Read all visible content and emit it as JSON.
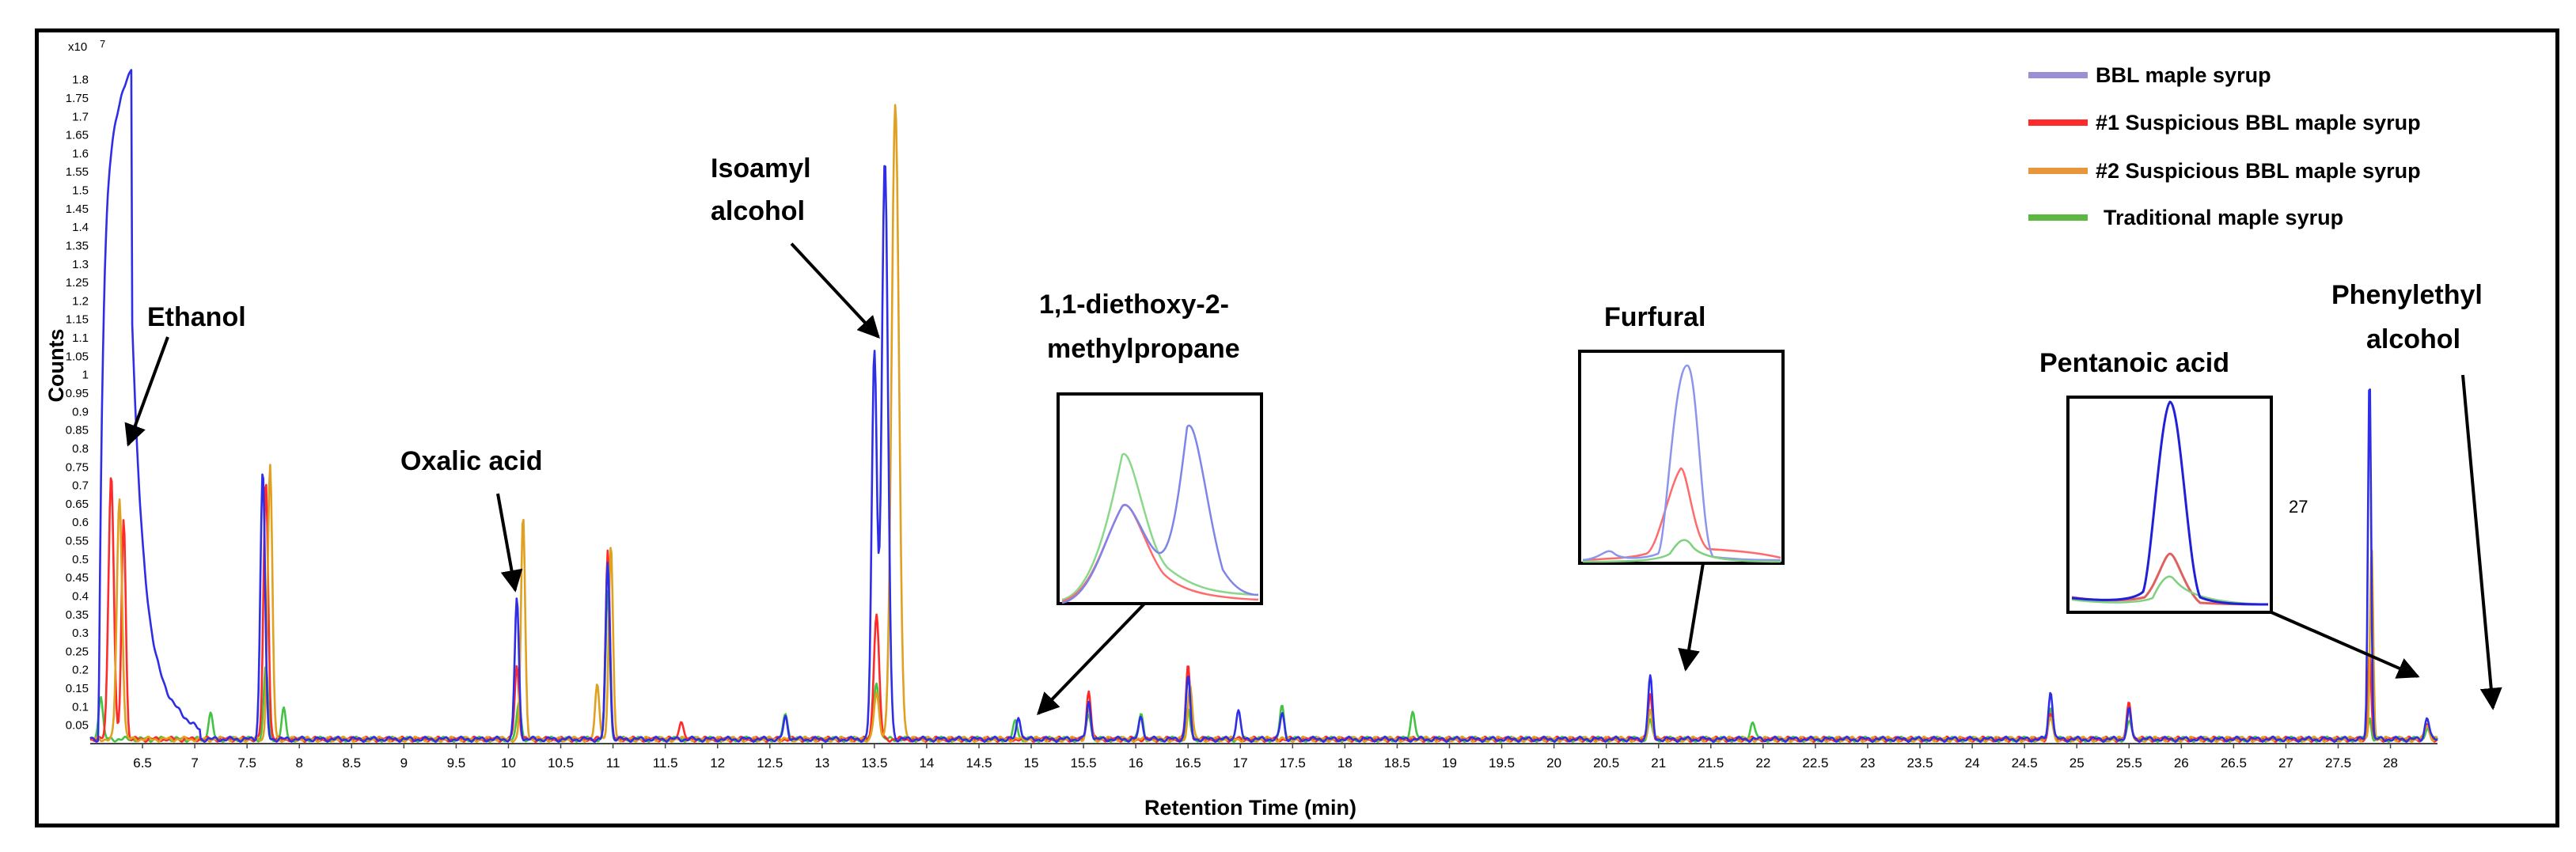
{
  "chart_data": {
    "type": "line",
    "xlabel": "Retention Time (min)",
    "ylabel": "Counts",
    "y_multiplier": "x10",
    "y_multiplier_exp": "7",
    "xlim": [
      6.0,
      28.45
    ],
    "ylim": [
      0,
      1.9
    ],
    "x_ticks": [
      "6.5",
      "7",
      "7.5",
      "8",
      "8.5",
      "9",
      "9.5",
      "10",
      "10.5",
      "11",
      "11.5",
      "12",
      "12.5",
      "13",
      "13.5",
      "14",
      "14.5",
      "15",
      "15.5",
      "16",
      "16.5",
      "17",
      "17.5",
      "18",
      "18.5",
      "19",
      "19.5",
      "20",
      "20.5",
      "21",
      "21.5",
      "22",
      "22.5",
      "23",
      "23.5",
      "24",
      "24.5",
      "25",
      "25.5",
      "26",
      "26.5",
      "27",
      "27.5",
      "28"
    ],
    "y_ticks": [
      "0.05",
      "0.1",
      "0.15",
      "0.2",
      "0.25",
      "0.3",
      "0.35",
      "0.4",
      "0.45",
      "0.5",
      "0.55",
      "0.6",
      "0.65",
      "0.7",
      "0.75",
      "0.8",
      "0.85",
      "0.9",
      "0.95",
      "1",
      "1.05",
      "1.1",
      "1.15",
      "1.2",
      "1.25",
      "1.3",
      "1.35",
      "1.4",
      "1.45",
      "1.5",
      "1.55",
      "1.6",
      "1.65",
      "1.7",
      "1.75",
      "1.8"
    ],
    "baseline": 0.012,
    "series": [
      {
        "name": "BBL maple syrup",
        "legend_color": "#9b8fd6",
        "line_color": "#2e2ee6",
        "peaks": [
          [
            7.65,
            0.73,
            0.022
          ],
          [
            10.08,
            0.38,
            0.02
          ],
          [
            10.95,
            0.48,
            0.02
          ],
          [
            12.65,
            0.06,
            0.02
          ],
          [
            13.5,
            1.05,
            0.025
          ],
          [
            13.6,
            1.57,
            0.03
          ],
          [
            14.88,
            0.06,
            0.02
          ],
          [
            15.55,
            0.1,
            0.02
          ],
          [
            16.05,
            0.06,
            0.02
          ],
          [
            16.5,
            0.17,
            0.02
          ],
          [
            16.98,
            0.08,
            0.02
          ],
          [
            17.4,
            0.07,
            0.02
          ],
          [
            20.92,
            0.17,
            0.02
          ],
          [
            24.75,
            0.13,
            0.02
          ],
          [
            25.5,
            0.08,
            0.02
          ],
          [
            27.8,
            1.0,
            0.015
          ],
          [
            28.35,
            0.06,
            0.02
          ]
        ],
        "tail": {
          "start": 6.08,
          "end": 7.05,
          "max": 1.84
        }
      },
      {
        "name": "#1 Suspicious BBL maple syrup",
        "legend_color": "#ff2a2a",
        "line_color": "#ff2a2a",
        "peaks": [
          [
            6.2,
            0.72,
            0.025
          ],
          [
            6.32,
            0.6,
            0.02
          ],
          [
            7.68,
            0.7,
            0.022
          ],
          [
            10.08,
            0.2,
            0.02
          ],
          [
            10.95,
            0.52,
            0.02
          ],
          [
            11.65,
            0.05,
            0.02
          ],
          [
            13.52,
            0.34,
            0.025
          ],
          [
            15.55,
            0.13,
            0.02
          ],
          [
            16.5,
            0.2,
            0.02
          ],
          [
            20.92,
            0.12,
            0.02
          ],
          [
            24.75,
            0.07,
            0.02
          ],
          [
            25.5,
            0.1,
            0.02
          ],
          [
            27.8,
            0.24,
            0.015
          ],
          [
            28.35,
            0.04,
            0.02
          ]
        ]
      },
      {
        "name": "#2 Suspicious BBL maple syrup",
        "legend_color": "#e8963c",
        "line_color": "#e0a020",
        "peaks": [
          [
            6.28,
            0.65,
            0.025
          ],
          [
            7.72,
            0.74,
            0.022
          ],
          [
            10.14,
            0.6,
            0.02
          ],
          [
            10.85,
            0.15,
            0.02
          ],
          [
            10.98,
            0.52,
            0.02
          ],
          [
            13.52,
            0.12,
            0.025
          ],
          [
            13.7,
            1.72,
            0.035
          ],
          [
            15.55,
            0.08,
            0.02
          ],
          [
            16.52,
            0.15,
            0.02
          ],
          [
            20.92,
            0.08,
            0.02
          ],
          [
            24.75,
            0.06,
            0.02
          ],
          [
            25.5,
            0.08,
            0.02
          ],
          [
            27.82,
            0.52,
            0.015
          ],
          [
            28.35,
            0.04,
            0.02
          ]
        ]
      },
      {
        "name": "Traditional maple syrup",
        "legend_color": "#5cb840",
        "line_color": "#44c244",
        "peaks": [
          [
            6.1,
            0.12,
            0.02
          ],
          [
            7.15,
            0.07,
            0.02
          ],
          [
            7.68,
            0.2,
            0.02
          ],
          [
            7.85,
            0.08,
            0.02
          ],
          [
            10.1,
            0.1,
            0.02
          ],
          [
            10.95,
            0.4,
            0.02
          ],
          [
            12.65,
            0.07,
            0.02
          ],
          [
            13.52,
            0.15,
            0.025
          ],
          [
            14.85,
            0.05,
            0.02
          ],
          [
            15.55,
            0.07,
            0.02
          ],
          [
            16.05,
            0.07,
            0.02
          ],
          [
            16.5,
            0.08,
            0.02
          ],
          [
            17.4,
            0.09,
            0.02
          ],
          [
            18.65,
            0.08,
            0.02
          ],
          [
            20.92,
            0.05,
            0.02
          ],
          [
            21.9,
            0.05,
            0.02
          ],
          [
            24.75,
            0.09,
            0.02
          ],
          [
            25.5,
            0.05,
            0.02
          ],
          [
            27.8,
            0.06,
            0.015
          ],
          [
            28.35,
            0.03,
            0.02
          ]
        ]
      }
    ],
    "annotations": [
      {
        "id": "ethanol",
        "text": "Ethanol"
      },
      {
        "id": "oxalic",
        "text": "Oxalic acid"
      },
      {
        "id": "isoamyl-1",
        "text": "Isoamyl"
      },
      {
        "id": "isoamyl-2",
        "text": "alcohol"
      },
      {
        "id": "diethoxy-1",
        "text": "1,1-diethoxy-2-"
      },
      {
        "id": "diethoxy-2",
        "text": "methylpropane"
      },
      {
        "id": "furfural",
        "text": "Furfural"
      },
      {
        "id": "pentanoic",
        "text": "Pentanoic acid"
      },
      {
        "id": "phenylethyl-1",
        "text": "Phenylethyl"
      },
      {
        "id": "phenylethyl-2",
        "text": "alcohol"
      },
      {
        "id": "stray",
        "text": "27"
      }
    ]
  }
}
